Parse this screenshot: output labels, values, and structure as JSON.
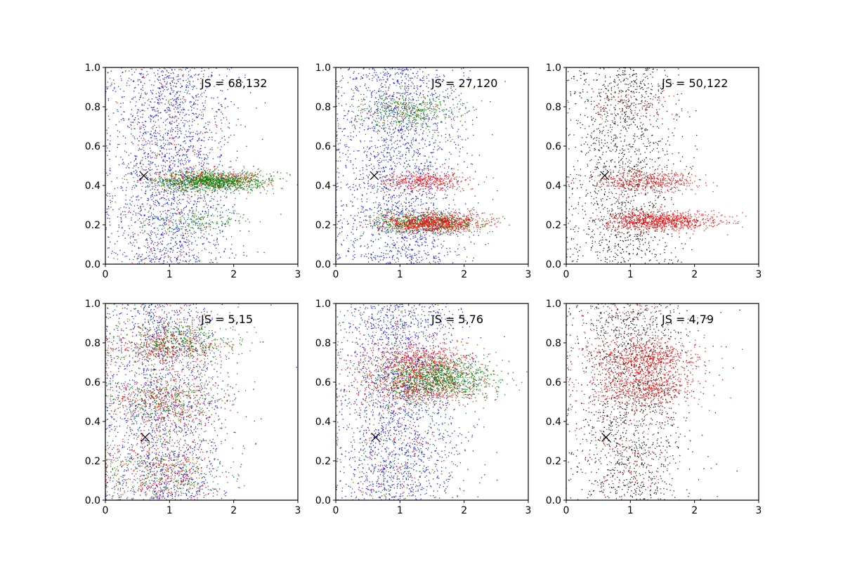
{
  "chart_data": [
    {
      "type": "scatter",
      "panel": "top-left",
      "annotation": "JS = 68,132",
      "xlim": [
        0,
        3
      ],
      "ylim": [
        0,
        1
      ],
      "x_ticks": [
        "0",
        "1",
        "2",
        "3"
      ],
      "y_ticks": [
        "0.0",
        "0.2",
        "0.4",
        "0.6",
        "0.8",
        "1.0"
      ],
      "marker": {
        "x": 0.6,
        "y": 0.45,
        "symbol": "x"
      },
      "series": [
        {
          "color": "#0000ff",
          "count": 1900,
          "clusters": [
            {
              "xm": 1.0,
              "xs": 0.5,
              "ym": 0.5,
              "ys": 0.3,
              "w": 1
            }
          ]
        },
        {
          "color": "#ff0000",
          "count": 650,
          "clusters": [
            {
              "xm": 1.6,
              "xs": 0.45,
              "ym": 0.43,
              "ys": 0.025,
              "w": 0.6
            },
            {
              "xm": 1.0,
              "xs": 0.5,
              "ym": 0.5,
              "ys": 0.3,
              "w": 0.4
            }
          ]
        },
        {
          "color": "#008000",
          "count": 1500,
          "clusters": [
            {
              "xm": 1.7,
              "xs": 0.45,
              "ym": 0.42,
              "ys": 0.025,
              "w": 0.75
            },
            {
              "xm": 1.4,
              "xs": 0.4,
              "ym": 0.22,
              "ys": 0.03,
              "w": 0.15
            },
            {
              "xm": 1.0,
              "xs": 0.5,
              "ym": 0.6,
              "ys": 0.25,
              "w": 0.1
            }
          ]
        }
      ]
    },
    {
      "type": "scatter",
      "panel": "top-middle",
      "annotation": "JS = 27,120",
      "xlim": [
        0,
        3
      ],
      "ylim": [
        0,
        1
      ],
      "x_ticks": [
        "0",
        "1",
        "2",
        "3"
      ],
      "y_ticks": [
        "0.0",
        "0.2",
        "0.4",
        "0.6",
        "0.8",
        "1.0"
      ],
      "marker": {
        "x": 0.6,
        "y": 0.45,
        "symbol": "x"
      },
      "series": [
        {
          "color": "#0000ff",
          "count": 1900,
          "clusters": [
            {
              "xm": 1.0,
              "xs": 0.5,
              "ym": 0.5,
              "ys": 0.3,
              "w": 1
            }
          ]
        },
        {
          "color": "#008000",
          "count": 1300,
          "clusters": [
            {
              "xm": 1.4,
              "xs": 0.45,
              "ym": 0.21,
              "ys": 0.03,
              "w": 0.55
            },
            {
              "xm": 1.1,
              "xs": 0.4,
              "ym": 0.78,
              "ys": 0.05,
              "w": 0.35
            },
            {
              "xm": 1.0,
              "xs": 0.5,
              "ym": 0.5,
              "ys": 0.3,
              "w": 0.1
            }
          ]
        },
        {
          "color": "#ff0000",
          "count": 1400,
          "clusters": [
            {
              "xm": 1.5,
              "xs": 0.4,
              "ym": 0.21,
              "ys": 0.025,
              "w": 0.65
            },
            {
              "xm": 1.4,
              "xs": 0.35,
              "ym": 0.42,
              "ys": 0.025,
              "w": 0.3
            },
            {
              "xm": 1.0,
              "xs": 0.4,
              "ym": 0.78,
              "ys": 0.05,
              "w": 0.05
            }
          ]
        }
      ]
    },
    {
      "type": "scatter",
      "panel": "top-right",
      "annotation": "JS = 50,122",
      "xlim": [
        0,
        3
      ],
      "ylim": [
        0,
        1
      ],
      "x_ticks": [
        "0",
        "1",
        "2",
        "3"
      ],
      "y_ticks": [
        "0.0",
        "0.2",
        "0.4",
        "0.6",
        "0.8",
        "1.0"
      ],
      "marker": {
        "x": 0.6,
        "y": 0.45,
        "symbol": "x"
      },
      "series": [
        {
          "color": "#000000",
          "count": 1500,
          "clusters": [
            {
              "xm": 0.9,
              "xs": 0.45,
              "ym": 0.5,
              "ys": 0.3,
              "w": 1
            }
          ]
        },
        {
          "color": "#ff0000",
          "count": 1500,
          "clusters": [
            {
              "xm": 1.5,
              "xs": 0.45,
              "ym": 0.22,
              "ys": 0.025,
              "w": 0.6
            },
            {
              "xm": 1.3,
              "xs": 0.4,
              "ym": 0.42,
              "ys": 0.03,
              "w": 0.32
            },
            {
              "xm": 1.0,
              "xs": 0.35,
              "ym": 0.8,
              "ys": 0.05,
              "w": 0.08
            }
          ]
        }
      ]
    },
    {
      "type": "scatter",
      "panel": "bottom-left",
      "annotation": "JS = 5,15",
      "xlim": [
        0,
        3
      ],
      "ylim": [
        0,
        1
      ],
      "x_ticks": [
        "0",
        "1",
        "2",
        "3"
      ],
      "y_ticks": [
        "0.0",
        "0.2",
        "0.4",
        "0.6",
        "0.8",
        "1.0"
      ],
      "marker": {
        "x": 0.62,
        "y": 0.32,
        "symbol": "x"
      },
      "series": [
        {
          "color": "#0000ff",
          "count": 1500,
          "clusters": [
            {
              "xm": 0.9,
              "xs": 0.5,
              "ym": 0.5,
              "ys": 0.3,
              "w": 1
            }
          ]
        },
        {
          "color": "#ff0000",
          "count": 1500,
          "clusters": [
            {
              "xm": 1.0,
              "xs": 0.45,
              "ym": 0.78,
              "ys": 0.05,
              "w": 0.3
            },
            {
              "xm": 0.9,
              "xs": 0.45,
              "ym": 0.5,
              "ys": 0.06,
              "w": 0.25
            },
            {
              "xm": 0.8,
              "xs": 0.45,
              "ym": 0.15,
              "ys": 0.1,
              "w": 0.25
            },
            {
              "xm": 0.9,
              "xs": 0.5,
              "ym": 0.5,
              "ys": 0.3,
              "w": 0.2
            }
          ]
        },
        {
          "color": "#008000",
          "count": 1300,
          "clusters": [
            {
              "xm": 1.1,
              "xs": 0.45,
              "ym": 0.8,
              "ys": 0.05,
              "w": 0.35
            },
            {
              "xm": 0.9,
              "xs": 0.45,
              "ym": 0.5,
              "ys": 0.06,
              "w": 0.25
            },
            {
              "xm": 0.8,
              "xs": 0.45,
              "ym": 0.15,
              "ys": 0.1,
              "w": 0.25
            },
            {
              "xm": 0.9,
              "xs": 0.5,
              "ym": 0.5,
              "ys": 0.3,
              "w": 0.15
            }
          ]
        }
      ]
    },
    {
      "type": "scatter",
      "panel": "bottom-middle",
      "annotation": "JS = 5,76",
      "xlim": [
        0,
        3
      ],
      "ylim": [
        0,
        1
      ],
      "x_ticks": [
        "0",
        "1",
        "2",
        "3"
      ],
      "y_ticks": [
        "0.0",
        "0.2",
        "0.4",
        "0.6",
        "0.8",
        "1.0"
      ],
      "marker": {
        "x": 0.62,
        "y": 0.32,
        "symbol": "x"
      },
      "series": [
        {
          "color": "#0000ff",
          "count": 1800,
          "clusters": [
            {
              "xm": 1.0,
              "xs": 0.5,
              "ym": 0.5,
              "ys": 0.3,
              "w": 1
            }
          ]
        },
        {
          "color": "#ff0000",
          "count": 1500,
          "clusters": [
            {
              "xm": 1.3,
              "xs": 0.45,
              "ym": 0.7,
              "ys": 0.05,
              "w": 0.45
            },
            {
              "xm": 1.3,
              "xs": 0.45,
              "ym": 0.57,
              "ys": 0.04,
              "w": 0.35
            },
            {
              "xm": 0.9,
              "xs": 0.5,
              "ym": 0.5,
              "ys": 0.3,
              "w": 0.2
            }
          ]
        },
        {
          "color": "#008000",
          "count": 1400,
          "clusters": [
            {
              "xm": 1.65,
              "xs": 0.45,
              "ym": 0.62,
              "ys": 0.05,
              "w": 0.75
            },
            {
              "xm": 1.0,
              "xs": 0.5,
              "ym": 0.5,
              "ys": 0.3,
              "w": 0.25
            }
          ]
        }
      ]
    },
    {
      "type": "scatter",
      "panel": "bottom-right",
      "annotation": "JS = 4,79",
      "xlim": [
        0,
        3
      ],
      "ylim": [
        0,
        1
      ],
      "x_ticks": [
        "0",
        "1",
        "2",
        "3"
      ],
      "y_ticks": [
        "0.0",
        "0.2",
        "0.4",
        "0.6",
        "0.8",
        "1.0"
      ],
      "marker": {
        "x": 0.62,
        "y": 0.32,
        "symbol": "x"
      },
      "series": [
        {
          "color": "#000000",
          "count": 1500,
          "clusters": [
            {
              "xm": 1.0,
              "xs": 0.45,
              "ym": 0.5,
              "ys": 0.3,
              "w": 1
            }
          ]
        },
        {
          "color": "#ff0000",
          "count": 1600,
          "clusters": [
            {
              "xm": 1.25,
              "xs": 0.4,
              "ym": 0.72,
              "ys": 0.05,
              "w": 0.4
            },
            {
              "xm": 1.25,
              "xs": 0.4,
              "ym": 0.57,
              "ys": 0.05,
              "w": 0.35
            },
            {
              "xm": 0.9,
              "xs": 0.45,
              "ym": 0.5,
              "ys": 0.3,
              "w": 0.25
            }
          ]
        }
      ]
    }
  ]
}
